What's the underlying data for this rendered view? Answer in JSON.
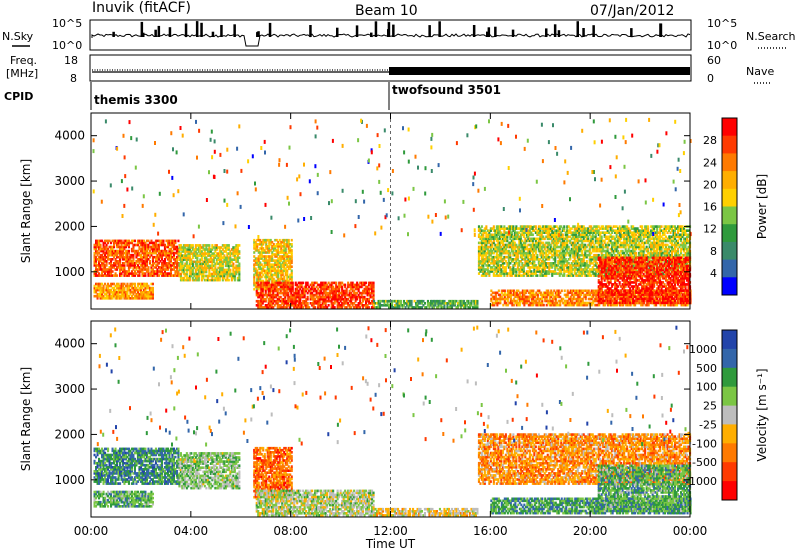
{
  "header": {
    "station": "Inuvik (fitACF)",
    "beam": "Beam 10",
    "date": "07/Jan/2012"
  },
  "status_panel": {
    "nsky_label": "N.Sky",
    "nsky_ticks": [
      "10^5",
      "10^0"
    ],
    "nsearch_label": "N.Search",
    "nsearch_ticks": [
      "10^5",
      "10^0"
    ],
    "freq_label": "Freq.",
    "freq_unit": "[MHz]",
    "freq_ticks": [
      "18",
      "8"
    ],
    "nave_label": "Nave",
    "nave_ticks": [
      "60",
      "0"
    ],
    "cpid_label": "CPID",
    "cpid_segments": [
      {
        "name": "themis 3300",
        "start_hour": 0,
        "end_hour": 12
      },
      {
        "name": "twofsound 3501",
        "start_hour": 12,
        "end_hour": 24
      }
    ]
  },
  "chart_data": [
    {
      "type": "heatmap",
      "title": "",
      "xlabel": "Time UT",
      "ylabel": "Slant Range [km]",
      "x_ticks": [
        "00:00",
        "04:00",
        "08:00",
        "12:00",
        "16:00",
        "20:00",
        "00:00"
      ],
      "x_tick_hours": [
        0,
        4,
        8,
        12,
        16,
        20,
        24
      ],
      "xlim_hours": [
        0,
        24
      ],
      "y_ticks": [
        1000,
        2000,
        3000,
        4000
      ],
      "ylim": [
        180,
        4500
      ],
      "colorbar_label": "Power [dB]",
      "colorbar_ticks": [
        "28",
        "24",
        "20",
        "16",
        "12",
        "8",
        "4"
      ],
      "colorbar_colors": [
        "#ff0000",
        "#ff3a00",
        "#ff7a00",
        "#ffae00",
        "#ffd000",
        "#7bc644",
        "#2f9a3c",
        "#3a8a6a",
        "#3366aa",
        "#0000ff"
      ],
      "regions": [
        {
          "t0": 0.1,
          "t1": 3.5,
          "r0": 900,
          "r1": 1700,
          "level": 0.85
        },
        {
          "t0": 0.1,
          "t1": 2.5,
          "r0": 400,
          "r1": 750,
          "level": 0.7
        },
        {
          "t0": 3.5,
          "t1": 5.9,
          "r0": 800,
          "r1": 1600,
          "level": 0.55
        },
        {
          "t0": 6.5,
          "t1": 8.0,
          "r0": 600,
          "r1": 1700,
          "level": 0.6
        },
        {
          "t0": 6.6,
          "t1": 11.3,
          "r0": 200,
          "r1": 750,
          "level": 0.9
        },
        {
          "t0": 11.3,
          "t1": 15.5,
          "r0": 200,
          "r1": 350,
          "level": 0.35
        },
        {
          "t0": 15.5,
          "t1": 24.0,
          "r0": 900,
          "r1": 2000,
          "level": 0.5
        },
        {
          "t0": 16.0,
          "t1": 24.0,
          "r0": 250,
          "r1": 600,
          "level": 0.75
        },
        {
          "t0": 20.3,
          "t1": 24.0,
          "r0": 300,
          "r1": 1300,
          "level": 0.95
        }
      ]
    },
    {
      "type": "heatmap",
      "title": "",
      "xlabel": "Time UT",
      "ylabel": "Slant Range [km]",
      "x_ticks": [
        "00:00",
        "04:00",
        "08:00",
        "12:00",
        "16:00",
        "20:00",
        "00:00"
      ],
      "x_tick_hours": [
        0,
        4,
        8,
        12,
        16,
        20,
        24
      ],
      "xlim_hours": [
        0,
        24
      ],
      "y_ticks": [
        1000,
        2000,
        3000,
        4000
      ],
      "ylim": [
        180,
        4500
      ],
      "colorbar_label": "Velocity [m s⁻¹]",
      "colorbar_ticks": [
        "1000",
        "500",
        "100",
        "25",
        "-25",
        "-100",
        "-500",
        "-1000"
      ],
      "colorbar_colors": [
        "#2244aa",
        "#3366aa",
        "#2f9a3c",
        "#7bc644",
        "#bdbdbd",
        "#ffae00",
        "#ff7a00",
        "#ff3a00",
        "#ff0000"
      ],
      "regions": [
        {
          "t0": 0.1,
          "t1": 3.5,
          "r0": 900,
          "r1": 1700,
          "level": 0.8
        },
        {
          "t0": 0.1,
          "t1": 2.5,
          "r0": 400,
          "r1": 750,
          "level": 0.7
        },
        {
          "t0": 3.5,
          "t1": 5.9,
          "r0": 800,
          "r1": 1600,
          "level": 0.6
        },
        {
          "t0": 6.5,
          "t1": 8.0,
          "r0": 600,
          "r1": 1700,
          "level": 0.2
        },
        {
          "t0": 6.6,
          "t1": 11.3,
          "r0": 200,
          "r1": 750,
          "level": 0.55
        },
        {
          "t0": 11.3,
          "t1": 15.5,
          "r0": 200,
          "r1": 350,
          "level": 0.45
        },
        {
          "t0": 15.5,
          "t1": 24.0,
          "r0": 900,
          "r1": 2000,
          "level": 0.3
        },
        {
          "t0": 16.0,
          "t1": 24.0,
          "r0": 250,
          "r1": 600,
          "level": 0.75
        },
        {
          "t0": 20.3,
          "t1": 24.0,
          "r0": 300,
          "r1": 1300,
          "level": 0.7
        }
      ]
    }
  ]
}
